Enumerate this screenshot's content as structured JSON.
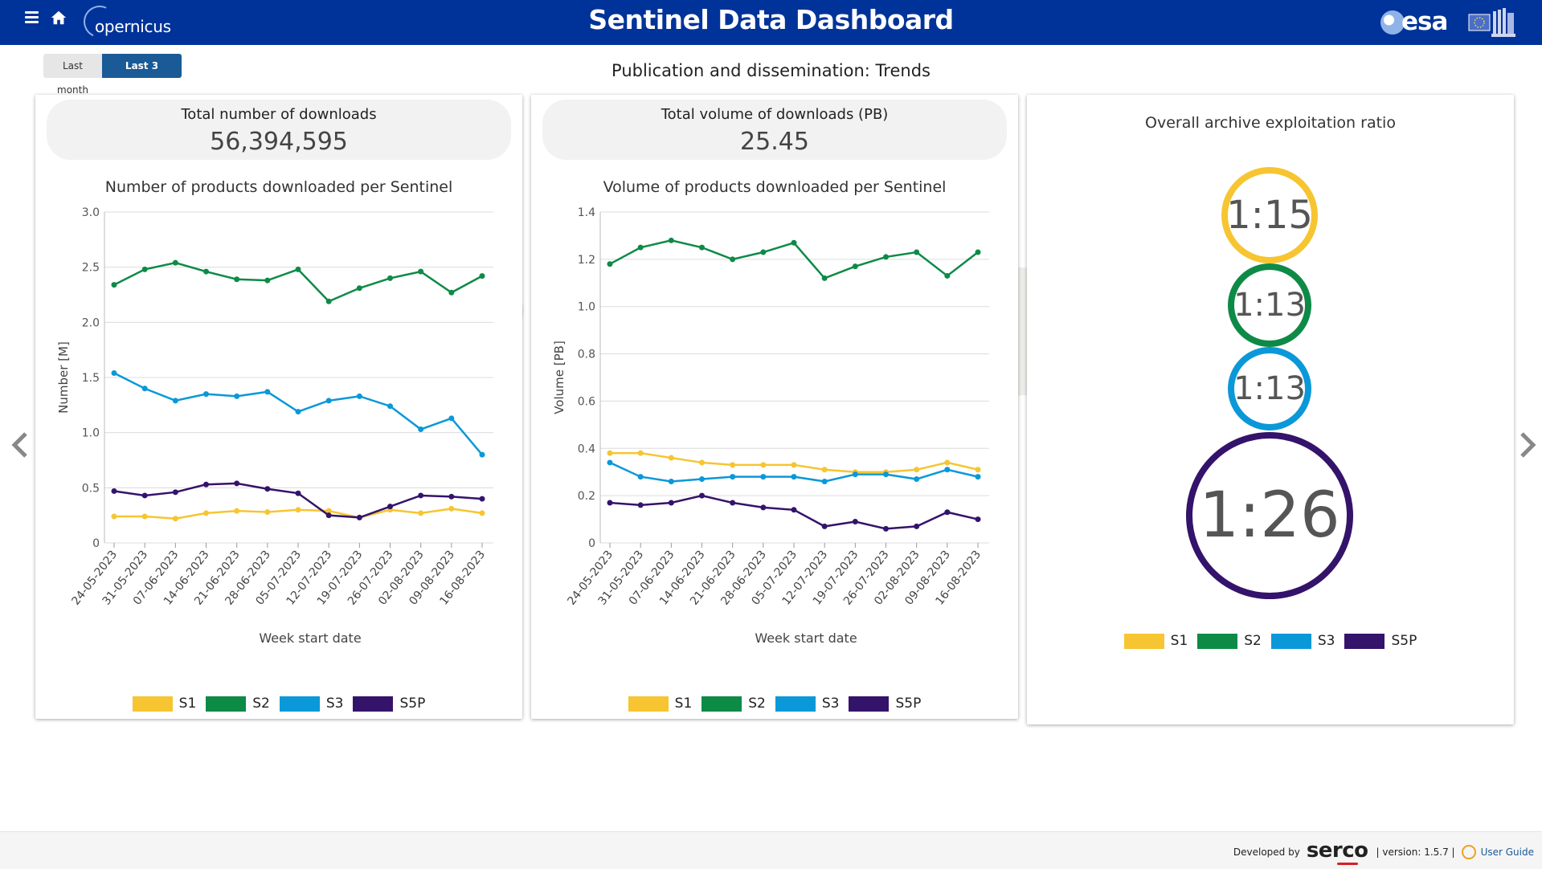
{
  "header": {
    "title": "Sentinel Data Dashboard",
    "logo_left": "opernicus",
    "logo_right": "esa"
  },
  "time_range": {
    "options": [
      "Last month",
      "Last 3 months"
    ],
    "selected": "Last 3 months"
  },
  "section_title": "Publication and dissemination: Trends",
  "colors": {
    "S1": "#f6c531",
    "S2": "#0e8a47",
    "S3": "#0b98d8",
    "S5P": "#34136b"
  },
  "downloads_panel": {
    "kpi_label": "Total number of downloads",
    "kpi_value": "56,394,595",
    "chart_title": "Number of products downloaded per Sentinel"
  },
  "volume_panel": {
    "kpi_label": "Total volume of downloads (PB)",
    "kpi_value": "25.45",
    "chart_title": "Volume of products downloaded per Sentinel"
  },
  "ratio_panel": {
    "title": "Overall archive exploitation ratio",
    "ratios": [
      {
        "series": "S1",
        "value": "1:15"
      },
      {
        "series": "S2",
        "value": "1:13"
      },
      {
        "series": "S3",
        "value": "1:13"
      },
      {
        "series": "S5P",
        "value": "1:26"
      }
    ]
  },
  "legend": [
    "S1",
    "S2",
    "S3",
    "S5P"
  ],
  "chart_data": [
    {
      "type": "line",
      "title": "Number of products downloaded per Sentinel",
      "xlabel": "Week start date",
      "ylabel": "Number [M]",
      "ylim": [
        0,
        3.0
      ],
      "yticks": [
        0,
        0.5,
        1.0,
        1.5,
        2.0,
        2.5,
        3.0
      ],
      "ytick_labels": [
        "0",
        "0.5",
        "1.0",
        "1.5",
        "2.0",
        "2.5",
        "3.0"
      ],
      "grid": true,
      "legend_position": "bottom",
      "x": [
        "24-05-2023",
        "31-05-2023",
        "07-06-2023",
        "14-06-2023",
        "21-06-2023",
        "28-06-2023",
        "05-07-2023",
        "12-07-2023",
        "19-07-2023",
        "26-07-2023",
        "02-08-2023",
        "09-08-2023",
        "16-08-2023"
      ],
      "series": [
        {
          "name": "S1",
          "values": [
            0.24,
            0.24,
            0.22,
            0.27,
            0.29,
            0.28,
            0.3,
            0.29,
            0.23,
            0.3,
            0.27,
            0.31,
            0.27
          ]
        },
        {
          "name": "S2",
          "values": [
            2.34,
            2.48,
            2.54,
            2.46,
            2.39,
            2.38,
            2.48,
            2.19,
            2.31,
            2.4,
            2.46,
            2.27,
            2.42
          ]
        },
        {
          "name": "S3",
          "values": [
            1.54,
            1.4,
            1.29,
            1.35,
            1.33,
            1.37,
            1.19,
            1.29,
            1.33,
            1.24,
            1.03,
            1.13,
            0.8
          ]
        },
        {
          "name": "S5P",
          "values": [
            0.47,
            0.43,
            0.46,
            0.53,
            0.54,
            0.49,
            0.45,
            0.25,
            0.23,
            0.33,
            0.43,
            0.42,
            0.4
          ]
        }
      ]
    },
    {
      "type": "line",
      "title": "Volume of products downloaded per Sentinel",
      "xlabel": "Week start date",
      "ylabel": "Volume [PB]",
      "ylim": [
        0,
        1.4
      ],
      "yticks": [
        0,
        0.2,
        0.4,
        0.6,
        0.8,
        1.0,
        1.2,
        1.4
      ],
      "ytick_labels": [
        "0",
        "0.2",
        "0.4",
        "0.6",
        "0.8",
        "1.0",
        "1.2",
        "1.4"
      ],
      "grid": true,
      "legend_position": "bottom",
      "x": [
        "24-05-2023",
        "31-05-2023",
        "07-06-2023",
        "14-06-2023",
        "21-06-2023",
        "28-06-2023",
        "05-07-2023",
        "12-07-2023",
        "19-07-2023",
        "26-07-2023",
        "02-08-2023",
        "09-08-2023",
        "16-08-2023"
      ],
      "series": [
        {
          "name": "S1",
          "values": [
            0.38,
            0.38,
            0.36,
            0.34,
            0.33,
            0.33,
            0.33,
            0.31,
            0.3,
            0.3,
            0.31,
            0.34,
            0.31
          ]
        },
        {
          "name": "S2",
          "values": [
            1.18,
            1.25,
            1.28,
            1.25,
            1.2,
            1.23,
            1.27,
            1.12,
            1.17,
            1.21,
            1.23,
            1.13,
            1.23
          ]
        },
        {
          "name": "S3",
          "values": [
            0.34,
            0.28,
            0.26,
            0.27,
            0.28,
            0.28,
            0.28,
            0.26,
            0.29,
            0.29,
            0.27,
            0.31,
            0.28
          ]
        },
        {
          "name": "S5P",
          "values": [
            0.17,
            0.16,
            0.17,
            0.2,
            0.17,
            0.15,
            0.14,
            0.07,
            0.09,
            0.06,
            0.07,
            0.13,
            0.1
          ]
        }
      ]
    }
  ],
  "footer": {
    "developed_by": "Developed by",
    "company": "serco",
    "version": "| version: 1.5.7 |",
    "guide_label": "User Guide"
  }
}
